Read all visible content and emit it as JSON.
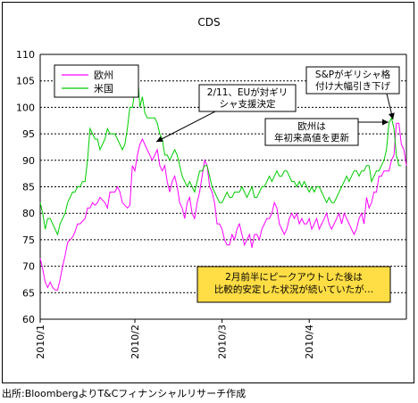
{
  "chart_data": {
    "type": "line",
    "title": "CDS",
    "xlabel": "",
    "ylabel": "",
    "ylim": [
      60,
      110
    ],
    "yticks": [
      60,
      65,
      70,
      75,
      80,
      85,
      90,
      95,
      100,
      105,
      110
    ],
    "xticks": [
      "2010/1",
      "2010/2",
      "2010/3",
      "2010/4"
    ],
    "grid": "horizontal dashed",
    "legend_position": "top-left",
    "colors": {
      "欧州": "#ff00ff",
      "米国": "#00dd00"
    },
    "series": [
      {
        "name": "欧州",
        "color": "#ff00ff",
        "values": [
          71.5,
          69.5,
          67,
          66,
          67,
          66,
          65.5,
          65.5,
          67.5,
          70,
          72,
          74.5,
          75,
          75.5,
          76.5,
          78,
          78,
          78.5,
          79,
          81,
          81,
          82,
          81.5,
          82,
          83,
          82.5,
          82,
          81,
          84,
          84,
          84,
          85,
          84,
          82,
          81.5,
          81,
          81.5,
          89,
          88,
          91,
          93,
          94,
          93,
          92,
          91,
          90,
          91,
          92,
          89,
          88,
          89,
          86,
          84,
          86,
          87,
          85,
          82,
          81,
          79,
          82,
          83,
          80,
          79,
          82,
          84,
          87,
          90,
          89,
          85,
          84,
          82,
          78,
          78,
          77,
          75,
          74,
          74,
          76,
          75,
          77,
          78,
          76,
          74,
          75,
          76,
          73.5,
          76,
          76,
          75,
          77,
          78,
          79,
          79,
          80,
          82,
          81,
          78,
          77,
          76,
          77,
          79,
          80,
          79,
          80,
          78,
          79,
          78,
          78,
          79,
          77,
          78,
          79,
          77,
          78,
          79,
          80,
          78,
          77,
          78,
          79,
          80,
          78,
          80,
          79,
          78,
          77,
          76,
          77,
          79,
          80,
          78,
          83,
          81,
          82,
          84,
          84,
          87,
          87,
          88,
          88,
          88,
          90,
          91,
          97,
          97,
          93,
          92,
          89
        ]
      },
      {
        "name": "米国",
        "color": "#00cc00",
        "values": [
          82,
          80,
          77,
          79,
          79,
          78,
          77,
          76,
          78,
          79,
          80,
          82,
          83,
          84,
          84,
          85,
          85,
          86,
          86,
          90,
          96,
          95,
          94,
          94,
          92,
          93,
          94,
          96,
          95,
          95,
          95,
          94,
          93,
          92,
          93,
          96,
          100,
          100,
          103,
          107,
          100,
          102,
          99,
          98,
          98,
          98,
          98,
          97,
          95,
          94,
          91,
          91,
          90,
          91,
          92,
          91,
          89,
          87,
          86,
          85,
          86,
          85,
          84,
          86,
          88,
          88,
          89,
          89,
          87,
          85,
          84,
          83,
          82,
          82,
          83,
          84,
          83,
          83,
          84,
          84,
          84,
          85,
          84,
          83,
          84,
          85,
          83,
          83,
          84,
          85,
          85,
          86,
          87,
          86,
          87,
          88,
          87,
          87,
          88,
          88,
          87,
          86,
          86,
          85,
          86,
          85,
          86,
          85,
          84,
          85,
          84,
          85,
          85,
          84,
          83,
          82,
          83,
          82,
          82,
          83,
          84,
          85,
          86,
          87,
          86,
          87,
          88,
          88,
          87,
          88,
          88,
          89,
          89,
          86,
          87,
          88,
          88,
          89,
          90,
          92,
          97,
          98,
          96,
          91,
          89,
          89
        ]
      }
    ],
    "annotations": [
      {
        "id": "eu-support",
        "lines": [
          "2/11、EUが対ギリ",
          "シャ支援決定"
        ],
        "x_index": 40,
        "y": 94
      },
      {
        "id": "sp-downgrade",
        "lines": [
          "S&Pがギリシャ格",
          "付け大幅引き下げ"
        ],
        "x_index": 141,
        "y": 98
      },
      {
        "id": "eu-high",
        "lines": [
          "欧州は",
          "年初来高値を更新"
        ],
        "x_index": 140,
        "y": 96
      }
    ],
    "callout_box": {
      "lines": [
        "2月前半にピークアウトした後は",
        "比較的安定した状況が続いていたが…"
      ],
      "fill": "#ffdd44"
    }
  },
  "source": "出所:BloombergよりT&Cフィナンシャルリサーチ作成"
}
